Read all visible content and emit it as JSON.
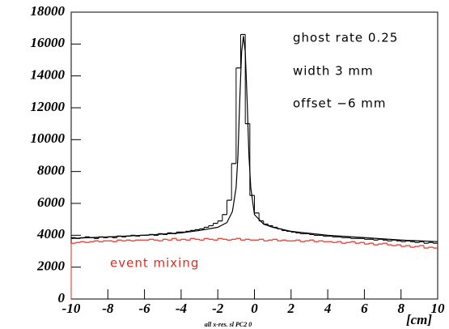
{
  "chart_data": {
    "type": "histogram",
    "xlabel": "[cm]",
    "footnote": "all x-res. sl PC2 0",
    "bins": [
      -10,
      -9.75,
      -9.5,
      -9.25,
      -9,
      -8.75,
      -8.5,
      -8.25,
      -8,
      -7.75,
      -7.5,
      -7.25,
      -7,
      -6.75,
      -6.5,
      -6.25,
      -6,
      -5.75,
      -5.5,
      -5.25,
      -5,
      -4.75,
      -4.5,
      -4.25,
      -4,
      -3.75,
      -3.5,
      -3.25,
      -3,
      -2.75,
      -2.5,
      -2.25,
      -2,
      -1.75,
      -1.5,
      -1.25,
      -1,
      -0.75,
      -0.5,
      -0.25,
      0,
      0.25,
      0.5,
      0.75,
      1,
      1.25,
      1.5,
      1.75,
      2,
      2.25,
      2.5,
      2.75,
      3,
      3.25,
      3.5,
      3.75,
      4,
      4.25,
      4.5,
      4.75,
      5,
      5.25,
      5.5,
      5.75,
      6,
      6.25,
      6.5,
      6.75,
      7,
      7.25,
      7.5,
      7.75,
      8,
      8.25,
      8.5,
      8.75,
      9,
      9.25,
      9.5,
      9.75,
      10
    ],
    "series": [
      {
        "color": "#000000",
        "values": [
          3850,
          3800,
          3850,
          3900,
          3850,
          3800,
          3900,
          3850,
          3900,
          3850,
          3950,
          3900,
          3950,
          4000,
          3950,
          4000,
          4000,
          4050,
          4000,
          4100,
          4050,
          4150,
          4100,
          4200,
          4200,
          4250,
          4300,
          4350,
          4400,
          4500,
          4600,
          4750,
          4900,
          5300,
          6200,
          8500,
          14500,
          16600,
          11000,
          6500,
          5400,
          4900,
          4700,
          4600,
          4500,
          4400,
          4300,
          4250,
          4200,
          4150,
          4100,
          4100,
          4050,
          4000,
          4000,
          3950,
          3950,
          3900,
          3900,
          3850,
          3850,
          3800,
          3800,
          3800,
          3750,
          3750,
          3700,
          3750,
          3700,
          3650,
          3700,
          3650,
          3600,
          3650,
          3600,
          3550,
          3600,
          3500,
          3550,
          3500
        ]
      },
      {
        "name": "event mixing",
        "color": "#e8261c",
        "values": [
          3500,
          3550,
          3600,
          3550,
          3600,
          3650,
          3600,
          3650,
          3650,
          3600,
          3700,
          3650,
          3700,
          3650,
          3700,
          3700,
          3700,
          3750,
          3700,
          3650,
          3750,
          3700,
          3800,
          3700,
          3750,
          3700,
          3800,
          3750,
          3700,
          3800,
          3750,
          3700,
          3800,
          3750,
          3700,
          3750,
          3800,
          3700,
          3750,
          3700,
          3700,
          3750,
          3650,
          3700,
          3750,
          3650,
          3700,
          3650,
          3650,
          3700,
          3600,
          3650,
          3700,
          3600,
          3650,
          3600,
          3600,
          3550,
          3600,
          3500,
          3550,
          3600,
          3500,
          3550,
          3450,
          3500,
          3400,
          3450,
          3500,
          3400,
          3350,
          3400,
          3300,
          3350,
          3250,
          3300,
          3350,
          3200,
          3250,
          3200
        ]
      }
    ],
    "fit": {
      "type": "line",
      "color": "#000000",
      "x": [
        -10,
        -8,
        -6,
        -4,
        -3,
        -2,
        -1.5,
        -1.2,
        -1,
        -0.9,
        -0.8,
        -0.7,
        -0.6,
        -0.5,
        -0.4,
        -0.3,
        -0.2,
        0,
        0.5,
        1,
        2,
        4,
        6,
        8,
        10
      ],
      "values": [
        3800,
        3900,
        4000,
        4150,
        4300,
        4500,
        4800,
        5500,
        7000,
        9000,
        12500,
        15500,
        16500,
        15500,
        12500,
        9000,
        7000,
        5300,
        4700,
        4500,
        4250,
        4000,
        3850,
        3700,
        3600
      ]
    },
    "annotations": [
      {
        "text": "ghost rate 0.25",
        "color": "#000000"
      },
      {
        "text": "width 3 mm",
        "color": "#000000"
      },
      {
        "text": "offset −6 mm",
        "color": "#000000"
      }
    ],
    "xlim": [
      -10,
      10
    ],
    "ylim": [
      0,
      18000
    ],
    "xticks": [
      -10,
      -8,
      -6,
      -4,
      -2,
      0,
      2,
      4,
      6,
      8,
      10
    ],
    "yticks": [
      0,
      2000,
      4000,
      6000,
      8000,
      10000,
      12000,
      14000,
      16000,
      18000
    ]
  }
}
